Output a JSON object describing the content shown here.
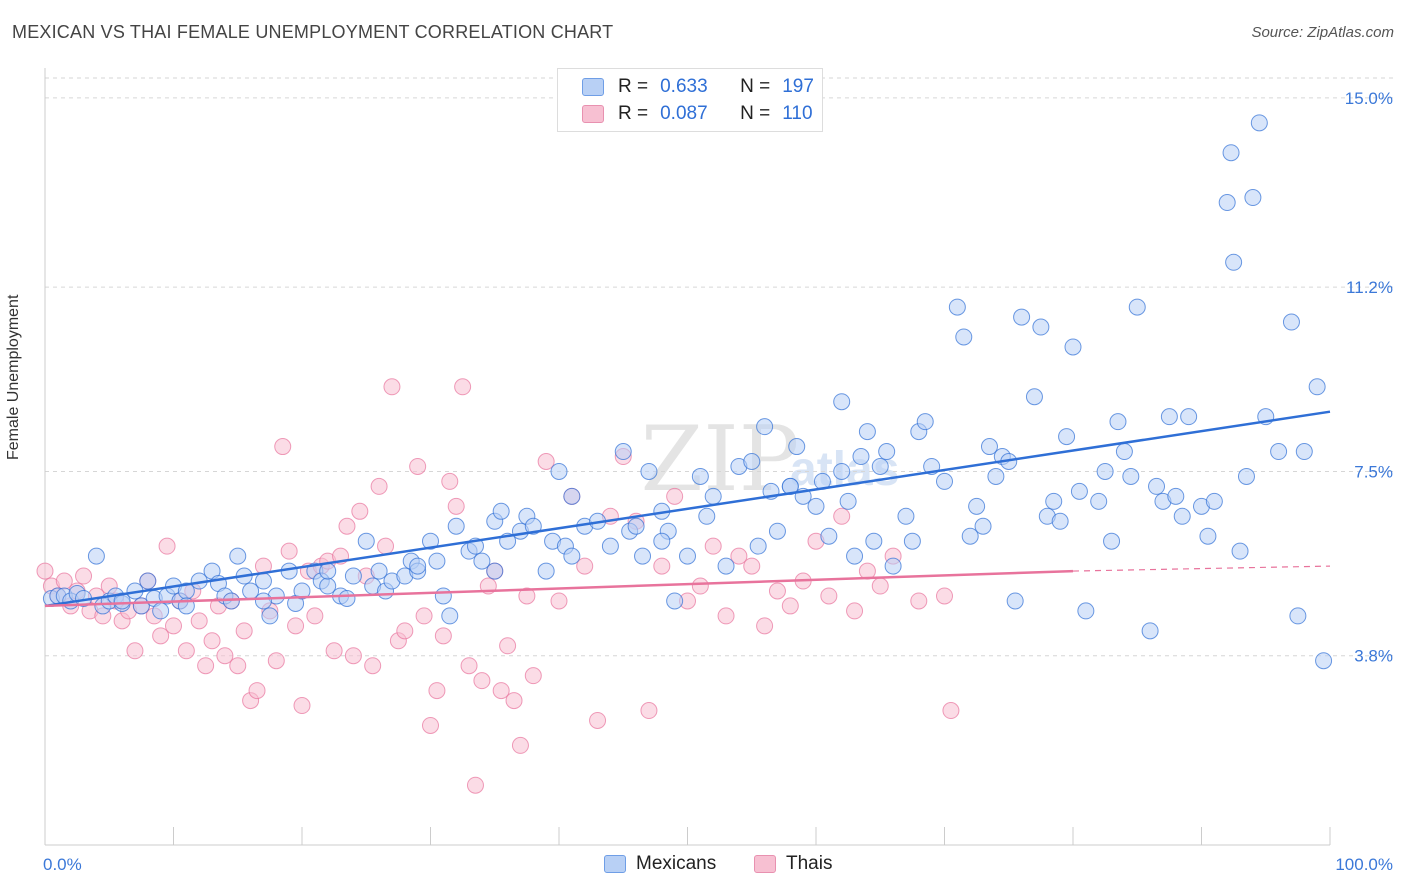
{
  "title": "MEXICAN VS THAI FEMALE UNEMPLOYMENT CORRELATION CHART",
  "source": "Source: ZipAtlas.com",
  "colors": {
    "blue": "#2f6fd6",
    "blue_fill": "#b8d0f5",
    "pink": "#e8739c",
    "pink_fill": "#f7c0d2",
    "grid": "#d6d6d6",
    "tick_label": "#3b78d8"
  },
  "legend": {
    "r_label": "R =",
    "n_label": "N =",
    "mexicans": {
      "r": "0.633",
      "n": "197"
    },
    "thais": {
      "r": "0.087",
      "n": "110"
    }
  },
  "bottom_legend": {
    "mexicans": "Mexicans",
    "thais": "Thais"
  },
  "chart_data": {
    "type": "scatter",
    "title": "MEXICAN VS THAI FEMALE UNEMPLOYMENT CORRELATION CHART",
    "xlabel": "",
    "ylabel": "Female Unemployment",
    "xlim": [
      0,
      100
    ],
    "ylim": [
      0,
      15.4
    ],
    "x_tick_labels": [
      "0.0%",
      "100.0%"
    ],
    "y_ticks": [
      3.8,
      7.5,
      11.2,
      15.0
    ],
    "y_tick_labels": [
      "3.8%",
      "7.5%",
      "11.2%",
      "15.0%"
    ],
    "grid": true,
    "series": [
      {
        "name": "Mexicans",
        "r": 0.633,
        "n": 197,
        "trend": {
          "x": [
            0,
            100
          ],
          "y": [
            4.8,
            8.7
          ]
        },
        "points": [
          [
            0.5,
            4.95
          ],
          [
            1,
            5.0
          ],
          [
            1.5,
            5.0
          ],
          [
            2,
            4.9
          ],
          [
            2.5,
            5.05
          ],
          [
            3,
            4.95
          ],
          [
            4,
            5.8
          ],
          [
            4.5,
            4.8
          ],
          [
            5,
            4.9
          ],
          [
            5.5,
            5.0
          ],
          [
            6,
            4.85
          ],
          [
            7,
            5.1
          ],
          [
            7.5,
            4.8
          ],
          [
            8,
            5.3
          ],
          [
            8.5,
            4.95
          ],
          [
            9,
            4.7
          ],
          [
            9.5,
            5.0
          ],
          [
            10,
            5.2
          ],
          [
            10.5,
            4.9
          ],
          [
            11,
            5.1
          ],
          [
            12,
            5.3
          ],
          [
            13,
            5.5
          ],
          [
            13.5,
            5.25
          ],
          [
            14,
            5.0
          ],
          [
            14.5,
            4.9
          ],
          [
            15,
            5.8
          ],
          [
            15.5,
            5.4
          ],
          [
            16,
            5.1
          ],
          [
            17,
            5.3
          ],
          [
            17.5,
            4.6
          ],
          [
            18,
            5.0
          ],
          [
            19,
            5.5
          ],
          [
            19.5,
            4.85
          ],
          [
            20,
            5.1
          ],
          [
            21,
            5.5
          ],
          [
            21.5,
            5.3
          ],
          [
            22,
            5.2
          ],
          [
            23,
            5.0
          ],
          [
            23.5,
            4.95
          ],
          [
            24,
            5.4
          ],
          [
            25,
            6.1
          ],
          [
            25.5,
            5.2
          ],
          [
            26,
            5.5
          ],
          [
            26.5,
            5.1
          ],
          [
            27,
            5.3
          ],
          [
            28,
            5.4
          ],
          [
            28.5,
            5.7
          ],
          [
            29,
            5.5
          ],
          [
            30,
            6.1
          ],
          [
            30.5,
            5.7
          ],
          [
            31,
            5.0
          ],
          [
            31.5,
            4.6
          ],
          [
            32,
            6.4
          ],
          [
            33,
            5.9
          ],
          [
            33.5,
            6.0
          ],
          [
            34,
            5.7
          ],
          [
            35,
            6.5
          ],
          [
            35.5,
            6.7
          ],
          [
            36,
            6.1
          ],
          [
            37,
            6.3
          ],
          [
            37.5,
            6.6
          ],
          [
            38,
            6.4
          ],
          [
            39,
            5.5
          ],
          [
            39.5,
            6.1
          ],
          [
            40,
            7.5
          ],
          [
            40.5,
            6.0
          ],
          [
            41,
            7.0
          ],
          [
            42,
            6.4
          ],
          [
            43,
            6.5
          ],
          [
            44,
            6.0
          ],
          [
            45,
            7.9
          ],
          [
            45.5,
            6.3
          ],
          [
            46,
            6.4
          ],
          [
            46.5,
            5.8
          ],
          [
            47,
            7.5
          ],
          [
            48,
            6.7
          ],
          [
            48.5,
            6.3
          ],
          [
            49,
            4.9
          ],
          [
            50,
            5.8
          ],
          [
            51,
            7.4
          ],
          [
            51.5,
            6.6
          ],
          [
            52,
            7.0
          ],
          [
            53,
            5.6
          ],
          [
            54,
            7.6
          ],
          [
            55,
            7.7
          ],
          [
            55.5,
            6.0
          ],
          [
            56,
            8.4
          ],
          [
            56.5,
            7.1
          ],
          [
            57,
            6.3
          ],
          [
            58,
            7.2
          ],
          [
            58.5,
            8.0
          ],
          [
            59,
            7.0
          ],
          [
            60,
            6.8
          ],
          [
            60.5,
            7.3
          ],
          [
            61,
            6.2
          ],
          [
            62,
            8.9
          ],
          [
            62.5,
            6.9
          ],
          [
            63,
            5.8
          ],
          [
            63.5,
            7.8
          ],
          [
            64,
            8.3
          ],
          [
            64.5,
            6.1
          ],
          [
            65,
            7.6
          ],
          [
            65.5,
            7.9
          ],
          [
            66,
            5.6
          ],
          [
            67,
            6.6
          ],
          [
            67.5,
            6.1
          ],
          [
            68,
            8.3
          ],
          [
            68.5,
            8.5
          ],
          [
            69,
            7.6
          ],
          [
            70,
            7.3
          ],
          [
            71,
            10.8
          ],
          [
            71.5,
            10.2
          ],
          [
            72,
            6.2
          ],
          [
            72.5,
            6.8
          ],
          [
            73,
            6.4
          ],
          [
            73.5,
            8.0
          ],
          [
            74,
            7.4
          ],
          [
            74.5,
            7.8
          ],
          [
            75,
            7.7
          ],
          [
            75.5,
            4.9
          ],
          [
            76,
            10.6
          ],
          [
            77,
            9.0
          ],
          [
            77.5,
            10.4
          ],
          [
            78,
            6.6
          ],
          [
            78.5,
            6.9
          ],
          [
            79,
            6.5
          ],
          [
            79.5,
            8.2
          ],
          [
            80,
            10.0
          ],
          [
            80.5,
            7.1
          ],
          [
            81,
            4.7
          ],
          [
            82,
            6.9
          ],
          [
            82.5,
            7.5
          ],
          [
            83,
            6.1
          ],
          [
            83.5,
            8.5
          ],
          [
            84,
            7.9
          ],
          [
            84.5,
            7.4
          ],
          [
            85,
            10.8
          ],
          [
            86,
            4.3
          ],
          [
            86.5,
            7.2
          ],
          [
            87,
            6.9
          ],
          [
            87.5,
            8.6
          ],
          [
            88,
            7.0
          ],
          [
            88.5,
            6.6
          ],
          [
            89,
            8.6
          ],
          [
            90,
            6.8
          ],
          [
            90.5,
            6.2
          ],
          [
            91,
            6.9
          ],
          [
            92,
            12.9
          ],
          [
            92.5,
            11.7
          ],
          [
            93,
            5.9
          ],
          [
            93.5,
            7.4
          ],
          [
            94,
            13.0
          ],
          [
            94.5,
            14.5
          ],
          [
            95,
            8.6
          ],
          [
            96,
            7.9
          ],
          [
            97,
            10.5
          ],
          [
            97.5,
            4.6
          ],
          [
            98,
            7.9
          ],
          [
            99,
            9.2
          ],
          [
            99.5,
            3.7
          ],
          [
            92.3,
            13.9
          ],
          [
            62,
            7.5
          ],
          [
            58,
            7.2
          ],
          [
            48,
            6.1
          ],
          [
            41,
            5.8
          ],
          [
            35,
            5.5
          ],
          [
            29,
            5.6
          ],
          [
            22,
            5.5
          ],
          [
            17,
            4.9
          ],
          [
            11,
            4.8
          ],
          [
            6,
            4.9
          ]
        ]
      },
      {
        "name": "Thais",
        "r": 0.087,
        "n": 110,
        "trend": {
          "x": [
            0,
            80
          ],
          "y": [
            4.8,
            5.5
          ]
        },
        "trend_dashed": {
          "x": [
            80,
            100
          ],
          "y": [
            5.5,
            5.6
          ]
        },
        "points": [
          [
            0,
            5.5
          ],
          [
            0.5,
            5.2
          ],
          [
            1,
            5.0
          ],
          [
            1.5,
            5.3
          ],
          [
            2,
            4.8
          ],
          [
            2.5,
            5.1
          ],
          [
            3,
            5.4
          ],
          [
            3.5,
            4.7
          ],
          [
            4,
            5.0
          ],
          [
            4.5,
            4.6
          ],
          [
            5,
            5.2
          ],
          [
            5.5,
            4.9
          ],
          [
            6,
            4.5
          ],
          [
            6.5,
            4.7
          ],
          [
            7,
            3.9
          ],
          [
            7.5,
            4.8
          ],
          [
            8,
            5.3
          ],
          [
            8.5,
            4.6
          ],
          [
            9,
            4.2
          ],
          [
            9.5,
            6.0
          ],
          [
            10,
            4.4
          ],
          [
            10.5,
            4.9
          ],
          [
            11,
            3.9
          ],
          [
            11.5,
            5.1
          ],
          [
            12,
            4.5
          ],
          [
            12.5,
            3.6
          ],
          [
            13,
            4.1
          ],
          [
            13.5,
            4.8
          ],
          [
            14,
            3.8
          ],
          [
            14.5,
            4.9
          ],
          [
            15,
            3.6
          ],
          [
            15.5,
            4.3
          ],
          [
            16,
            2.9
          ],
          [
            16.5,
            3.1
          ],
          [
            17,
            5.6
          ],
          [
            17.5,
            4.7
          ],
          [
            18,
            3.7
          ],
          [
            18.5,
            8.0
          ],
          [
            19,
            5.9
          ],
          [
            19.5,
            4.4
          ],
          [
            20,
            2.8
          ],
          [
            20.5,
            5.5
          ],
          [
            21,
            4.6
          ],
          [
            21.5,
            5.6
          ],
          [
            22,
            5.7
          ],
          [
            22.5,
            3.9
          ],
          [
            23,
            5.8
          ],
          [
            23.5,
            6.4
          ],
          [
            24,
            3.8
          ],
          [
            24.5,
            6.7
          ],
          [
            25,
            5.4
          ],
          [
            25.5,
            3.6
          ],
          [
            26,
            7.2
          ],
          [
            26.5,
            6.0
          ],
          [
            27,
            9.2
          ],
          [
            27.5,
            4.1
          ],
          [
            28,
            4.3
          ],
          [
            29,
            7.6
          ],
          [
            29.5,
            4.6
          ],
          [
            30,
            2.4
          ],
          [
            30.5,
            3.1
          ],
          [
            31,
            4.2
          ],
          [
            31.5,
            7.3
          ],
          [
            32,
            6.8
          ],
          [
            32.5,
            9.2
          ],
          [
            33,
            3.6
          ],
          [
            33.5,
            1.2
          ],
          [
            34,
            3.3
          ],
          [
            34.5,
            5.2
          ],
          [
            35,
            5.5
          ],
          [
            35.5,
            3.1
          ],
          [
            36,
            4.0
          ],
          [
            36.5,
            2.9
          ],
          [
            37,
            2.0
          ],
          [
            37.5,
            5.0
          ],
          [
            38,
            3.4
          ],
          [
            39,
            7.7
          ],
          [
            40,
            4.9
          ],
          [
            41,
            7.0
          ],
          [
            42,
            5.6
          ],
          [
            43,
            2.5
          ],
          [
            44,
            6.6
          ],
          [
            45,
            7.8
          ],
          [
            46,
            6.5
          ],
          [
            47,
            2.7
          ],
          [
            48,
            5.6
          ],
          [
            49,
            7.0
          ],
          [
            50,
            4.9
          ],
          [
            51,
            5.2
          ],
          [
            52,
            6.0
          ],
          [
            53,
            4.6
          ],
          [
            54,
            5.8
          ],
          [
            55,
            5.6
          ],
          [
            56,
            4.4
          ],
          [
            57,
            5.1
          ],
          [
            58,
            4.8
          ],
          [
            59,
            5.3
          ],
          [
            60,
            6.1
          ],
          [
            61,
            5.0
          ],
          [
            62,
            6.6
          ],
          [
            63,
            4.7
          ],
          [
            64,
            5.5
          ],
          [
            65,
            5.2
          ],
          [
            66,
            5.8
          ],
          [
            68,
            4.9
          ],
          [
            70,
            5.0
          ],
          [
            70.5,
            2.7
          ]
        ]
      }
    ]
  }
}
